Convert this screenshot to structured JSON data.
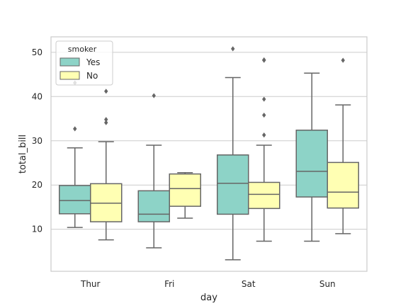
{
  "chart_data": {
    "type": "box",
    "title": "",
    "xlabel": "day",
    "ylabel": "total_bill",
    "categories": [
      "Thur",
      "Fri",
      "Sat",
      "Sun"
    ],
    "ylim": [
      0.5,
      53.5
    ],
    "yticks": [
      10,
      20,
      30,
      40,
      50
    ],
    "grid": "horizontal",
    "legend": {
      "title": "smoker",
      "placement": "top-left"
    },
    "colors": {
      "Yes": "#8dd3c7",
      "No": "#ffffb3",
      "line": "#666666",
      "grid": "#cccccc",
      "frame": "#cccccc"
    },
    "series": [
      {
        "name": "Yes",
        "boxes": [
          {
            "whisker_low": 10.4,
            "q1": 13.5,
            "median": 16.5,
            "q3": 19.9,
            "whisker_high": 28.4,
            "outliers": [
              32.7,
              43.1
            ]
          },
          {
            "whisker_low": 5.8,
            "q1": 11.7,
            "median": 13.4,
            "q3": 18.7,
            "whisker_high": 29.0,
            "outliers": [
              40.2
            ]
          },
          {
            "whisker_low": 3.1,
            "q1": 13.4,
            "median": 20.4,
            "q3": 26.8,
            "whisker_high": 44.3,
            "outliers": [
              50.8
            ]
          },
          {
            "whisker_low": 7.3,
            "q1": 17.3,
            "median": 23.1,
            "q3": 32.4,
            "whisker_high": 45.3,
            "outliers": []
          }
        ]
      },
      {
        "name": "No",
        "boxes": [
          {
            "whisker_low": 7.6,
            "q1": 11.7,
            "median": 15.9,
            "q3": 20.3,
            "whisker_high": 29.8,
            "outliers": [
              34.1,
              34.8,
              41.2
            ]
          },
          {
            "whisker_low": 12.5,
            "q1": 15.2,
            "median": 19.2,
            "q3": 22.5,
            "whisker_high": 22.8,
            "outliers": []
          },
          {
            "whisker_low": 7.3,
            "q1": 14.7,
            "median": 17.9,
            "q3": 20.6,
            "whisker_high": 29.0,
            "outliers": [
              31.3,
              35.8,
              39.4,
              48.2,
              48.3
            ]
          },
          {
            "whisker_low": 9.0,
            "q1": 14.8,
            "median": 18.4,
            "q3": 25.1,
            "whisker_high": 38.1,
            "outliers": [
              48.2
            ]
          }
        ]
      }
    ]
  }
}
